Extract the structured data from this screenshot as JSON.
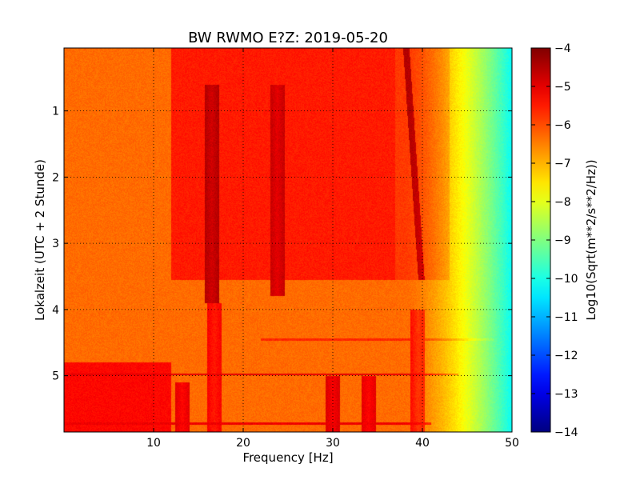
{
  "chart_data": {
    "type": "heatmap",
    "title": "BW RWMO E?Z: 2019-05-20",
    "xlabel": "Frequency [Hz]",
    "ylabel": "Lokalzeit (UTC + 2 Stunde)",
    "colorbar_label": "Log10(Sqrt(m**2/s**2/Hz))",
    "xlim": [
      0,
      50
    ],
    "ylim": [
      5.85,
      0.05
    ],
    "x_ticks": [
      10,
      20,
      30,
      40,
      50
    ],
    "y_ticks": [
      1,
      2,
      3,
      4,
      5
    ],
    "colorbar_range": [
      -14,
      -4
    ],
    "colorbar_ticks": [
      -4,
      -5,
      -6,
      -7,
      -8,
      -9,
      -10,
      -11,
      -12,
      -13,
      -14
    ],
    "colormap": "jet",
    "grid": true,
    "y_inverted": true,
    "features": [
      {
        "kind": "base",
        "x_range": [
          0,
          50
        ],
        "time_range": [
          0.05,
          5.85
        ],
        "value": -6.3
      },
      {
        "kind": "band",
        "x_range": [
          12,
          37
        ],
        "time_range": [
          0.05,
          3.55
        ],
        "value": -5.5
      },
      {
        "kind": "band",
        "x_range": [
          37,
          43
        ],
        "time_range": [
          0.05,
          3.55
        ],
        "value": -5.8
      },
      {
        "kind": "band",
        "x_range": [
          0,
          12
        ],
        "time_range": [
          4.8,
          5.85
        ],
        "value": -5.3
      },
      {
        "kind": "line",
        "x": 16.5,
        "time_range": [
          0.6,
          3.9
        ],
        "value": -4.8
      },
      {
        "kind": "line",
        "x": 23.8,
        "time_range": [
          0.6,
          3.8
        ],
        "value": -5.0
      },
      {
        "kind": "line",
        "x": 16.8,
        "time_range": [
          3.9,
          5.85
        ],
        "value": -5.5
      },
      {
        "kind": "line",
        "x": 13.2,
        "time_range": [
          5.1,
          5.85
        ],
        "value": -5.3
      },
      {
        "kind": "line",
        "x": 30.0,
        "time_range": [
          5.0,
          5.85
        ],
        "value": -5.2
      },
      {
        "kind": "line",
        "x": 34.0,
        "time_range": [
          5.0,
          5.85
        ],
        "value": -5.3
      },
      {
        "kind": "line",
        "x": 39.5,
        "time_range": [
          4.0,
          5.85
        ],
        "value": -5.6
      },
      {
        "kind": "diagonal",
        "x_start": 38.2,
        "t_start": 0.05,
        "x_end": 39.9,
        "t_end": 3.55,
        "value": -4.5
      },
      {
        "kind": "hline",
        "time": 4.98,
        "x_range": [
          0,
          44
        ],
        "value": -5.0
      },
      {
        "kind": "hline",
        "time": 5.72,
        "x_range": [
          0,
          41
        ],
        "value": -5.1
      },
      {
        "kind": "hline",
        "time": 4.45,
        "x_range": [
          22,
          48
        ],
        "value": -5.6
      }
    ],
    "edge_rolloff": {
      "x_start": 38,
      "x_end": 50,
      "value_end": -10.2
    }
  }
}
